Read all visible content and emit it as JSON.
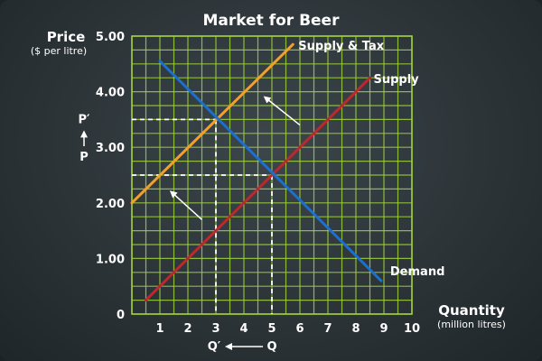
{
  "chart_data": {
    "type": "line",
    "title": "Market for Beer",
    "ylabel": "Price",
    "ylabel_unit": "($ per litre)",
    "xlabel": "Quantity",
    "xlabel_unit": "(million litres)",
    "xlim": [
      0,
      10
    ],
    "ylim": [
      0,
      5
    ],
    "x_ticks": [
      1,
      2,
      3,
      4,
      5,
      6,
      7,
      8,
      9,
      10
    ],
    "y_ticks": [
      0,
      1,
      2,
      3,
      4,
      5
    ],
    "y_tick_labels": [
      "0",
      "1.00",
      "2.00",
      "3.00",
      "4.00",
      "5.00"
    ],
    "grid": true,
    "series": [
      {
        "name": "Supply & Tax",
        "color": "#f2a02a",
        "points": [
          [
            0,
            2.0
          ],
          [
            5.75,
            4.85
          ]
        ]
      },
      {
        "name": "Supply",
        "color": "#c0272d",
        "points": [
          [
            0.5,
            0.25
          ],
          [
            8.5,
            4.25
          ]
        ]
      },
      {
        "name": "Demand",
        "color": "#1c6fce",
        "points": [
          [
            1.0,
            4.55
          ],
          [
            8.9,
            0.6
          ]
        ]
      }
    ],
    "equilibria": [
      {
        "x": 5,
        "y": 2.5,
        "x_label": "Q",
        "y_label": "P"
      },
      {
        "x": 3,
        "y": 3.5,
        "x_label": "Q′",
        "y_label": "P′"
      }
    ],
    "shift_arrows": [
      {
        "from": [
          6.0,
          3.4
        ],
        "to": [
          4.75,
          3.9
        ]
      },
      {
        "from": [
          2.5,
          1.7
        ],
        "to": [
          1.4,
          2.2
        ]
      }
    ],
    "colors": {
      "grid": "#9fd13a",
      "axis": "#9fd13a",
      "guide": "#ffffff"
    }
  }
}
